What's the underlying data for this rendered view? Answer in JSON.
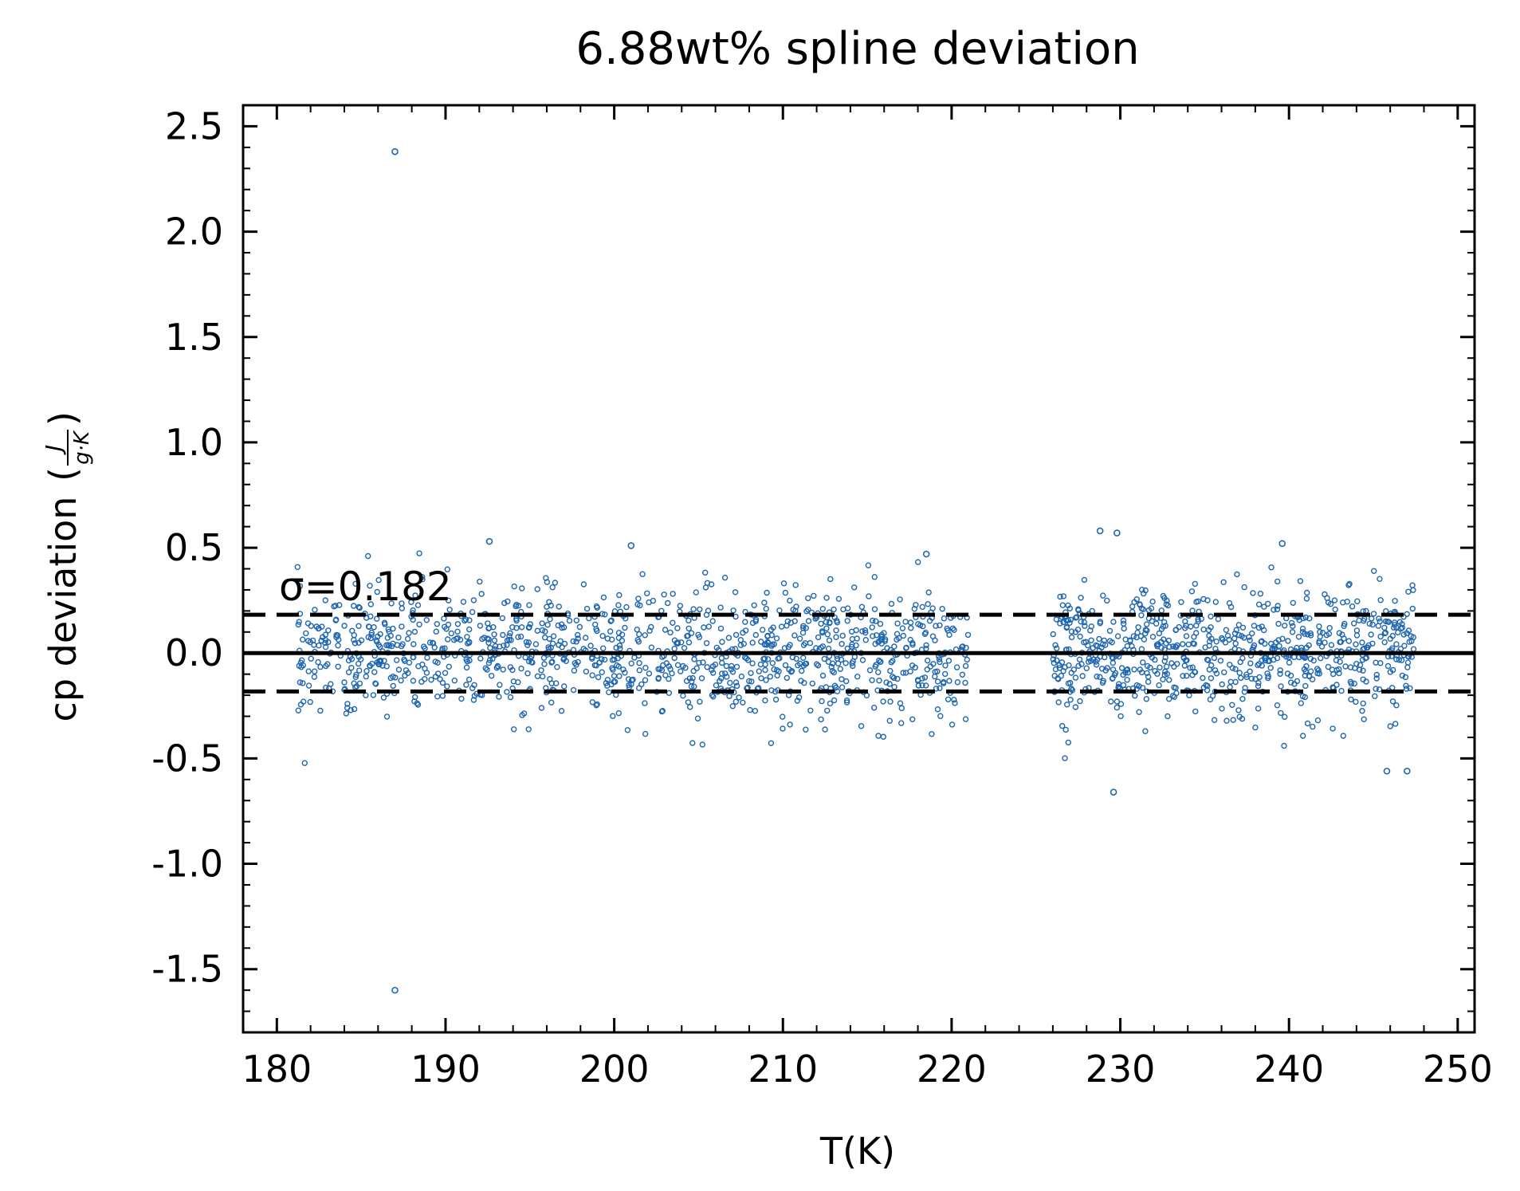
{
  "chart_data": {
    "type": "scatter",
    "title": "6.88wt% spline deviation",
    "xlabel": "T(K)",
    "ylabel": "cp deviation",
    "ylabel_unit_num": "J",
    "ylabel_unit_den": "g·K",
    "xlim": [
      178,
      251
    ],
    "ylim": [
      -1.8,
      2.6
    ],
    "xticks": [
      180,
      190,
      200,
      210,
      220,
      230,
      240,
      250
    ],
    "xtick_labels": [
      "180",
      "190",
      "200",
      "210",
      "220",
      "230",
      "240",
      "250"
    ],
    "yticks": [
      -1.5,
      -1.0,
      -0.5,
      0.0,
      0.5,
      1.0,
      1.5,
      2.0,
      2.5
    ],
    "ytick_labels": [
      "-1.5",
      "-1.0",
      "-0.5",
      "0.0",
      "0.5",
      "1.0",
      "1.5",
      "2.0",
      "2.5"
    ],
    "annotation": "σ=0.182",
    "sigma": 0.182,
    "reference_lines": [
      {
        "y": 0.0,
        "style": "solid",
        "x_range": [
          178,
          251
        ]
      },
      {
        "y": 0.182,
        "style": "dashed",
        "x_range": [
          178,
          251
        ]
      },
      {
        "y": -0.182,
        "style": "dashed",
        "x_range": [
          178,
          251
        ]
      }
    ],
    "grid": false,
    "marker_color": "#1f66b0",
    "line_color": "#000000",
    "series": [
      {
        "segments": [
          {
            "x_start": 181.2,
            "x_end": 221.0,
            "count": 1150
          },
          {
            "x_start": 226.0,
            "x_end": 247.4,
            "count": 750
          }
        ],
        "spread_sd": 0.15,
        "range": [
          -0.66,
          0.58
        ],
        "notable_points": [
          {
            "x": 187.0,
            "y": 2.38
          },
          {
            "x": 187.0,
            "y": -1.6
          },
          {
            "x": 192.6,
            "y": 0.53
          },
          {
            "x": 201.0,
            "y": 0.51
          },
          {
            "x": 218.5,
            "y": 0.47
          },
          {
            "x": 228.8,
            "y": 0.58
          },
          {
            "x": 229.8,
            "y": 0.57
          },
          {
            "x": 239.6,
            "y": 0.52
          },
          {
            "x": 229.6,
            "y": -0.66
          },
          {
            "x": 245.8,
            "y": -0.56
          },
          {
            "x": 247.0,
            "y": -0.56
          }
        ]
      }
    ]
  }
}
